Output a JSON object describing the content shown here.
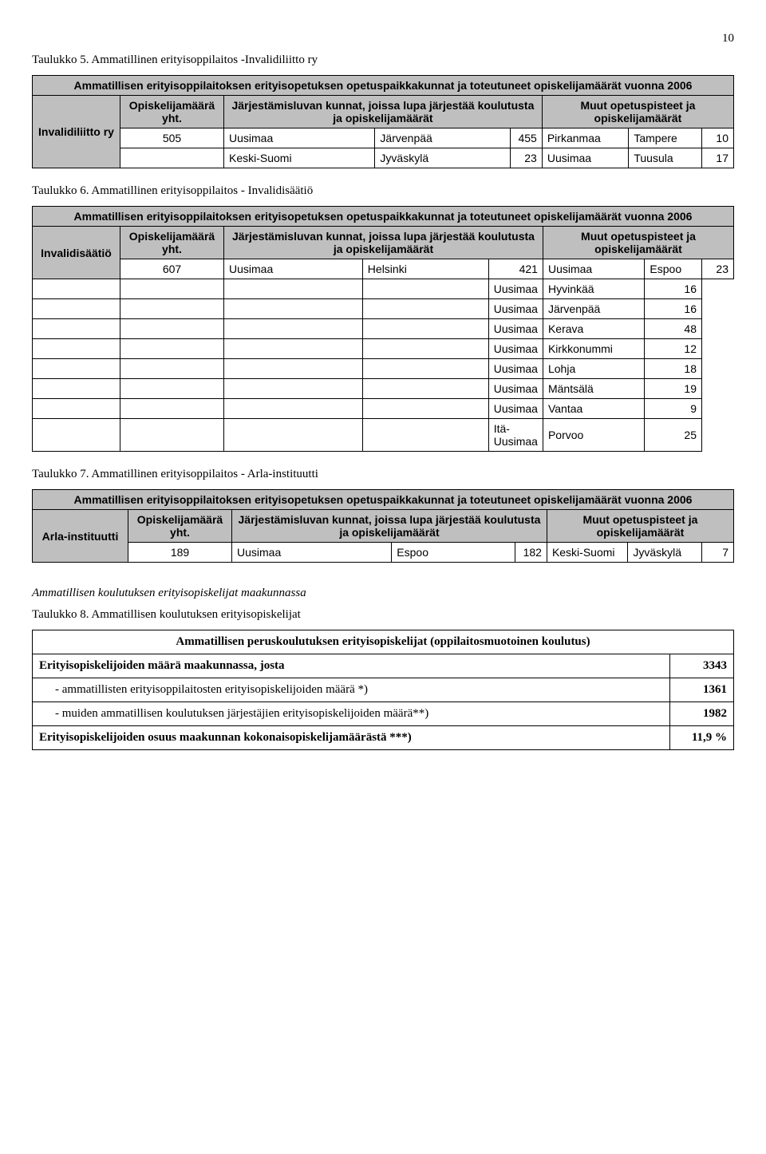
{
  "page_number": "10",
  "t5": {
    "caption": "Taulukko 5. Ammatillinen erityisoppilaitos -Invalidiliitto ry",
    "title": "Ammatillisen erityisoppilaitoksen erityisopetuksen opetuspaikkakunnat ja toteutuneet opiskelijamäärät vuonna 2006",
    "col_org": "Invalidiliitto ry",
    "col_count": "Opiskelijamäärä yht.",
    "col_jarj": "Järjestämisluvan kunnat, joissa lupa järjestää koulutusta ja opiskelijamäärät",
    "col_muut": "Muut opetuspisteet ja opiskelijamäärät",
    "r1": {
      "count": "505",
      "p1": "Uusimaa",
      "p2": "Järvenpää",
      "p3": "455",
      "p4": "Pirkanmaa",
      "p5": "Tampere",
      "p6": "10"
    },
    "r2": {
      "p1": "Keski-Suomi",
      "p2": "Jyväskylä",
      "p3": "23",
      "p4": "Uusimaa",
      "p5": "Tuusula",
      "p6": "17"
    }
  },
  "t6": {
    "caption": "Taulukko 6. Ammatillinen erityisoppilaitos - Invalidisäätiö",
    "title": "Ammatillisen erityisoppilaitoksen erityisopetuksen opetuspaikkakunnat ja toteutuneet opiskelijamäärät vuonna 2006",
    "col_org": "Invalidisäätiö",
    "col_count": "Opiskelijamäärä yht.",
    "col_jarj": "Järjestämisluvan kunnat, joissa lupa järjestää koulutusta ja opiskelijamäärät",
    "col_muut": "Muut opetuspisteet ja opiskelijamäärät",
    "r1": {
      "count": "607",
      "p1": "Uusimaa",
      "p2": "Helsinki",
      "p3": "421",
      "p4": "Uusimaa",
      "p5": "Espoo",
      "p6": "23"
    },
    "rows": [
      {
        "p4": "Uusimaa",
        "p5": "Hyvinkää",
        "p6": "16"
      },
      {
        "p4": "Uusimaa",
        "p5": "Järvenpää",
        "p6": "16"
      },
      {
        "p4": "Uusimaa",
        "p5": "Kerava",
        "p6": "48"
      },
      {
        "p4": "Uusimaa",
        "p5": "Kirkkonummi",
        "p6": "12"
      },
      {
        "p4": "Uusimaa",
        "p5": "Lohja",
        "p6": "18"
      },
      {
        "p4": "Uusimaa",
        "p5": "Mäntsälä",
        "p6": "19"
      },
      {
        "p4": "Uusimaa",
        "p5": "Vantaa",
        "p6": "9"
      },
      {
        "p4": "Itä-Uusimaa",
        "p5": "Porvoo",
        "p6": "25"
      }
    ]
  },
  "t7": {
    "caption": "Taulukko 7. Ammatillinen erityisoppilaitos - Arla-instituutti",
    "title": "Ammatillisen erityisoppilaitoksen erityisopetuksen opetuspaikkakunnat ja toteutuneet opiskelijamäärät vuonna 2006",
    "col_org": "Arla-instituutti",
    "col_count": "Opiskelijamäärä yht.",
    "col_jarj": "Järjestämisluvan kunnat, joissa lupa järjestää koulutusta ja opiskelijamäärät",
    "col_muut": "Muut opetuspisteet ja opiskelijamäärät",
    "r1": {
      "count": "189",
      "p1": "Uusimaa",
      "p2": "Espoo",
      "p3": "182",
      "p4": "Keski-Suomi",
      "p5": "Jyväskylä",
      "p6": "7"
    }
  },
  "section_heading": "Ammatillisen koulutuksen erityisopiskelijat maakunnassa",
  "t8": {
    "caption": "Taulukko 8. Ammatillisen koulutuksen erityisopiskelijat",
    "title": "Ammatillisen peruskoulutuksen erityisopiskelijat (oppilaitosmuotoinen koulutus)",
    "rows": [
      {
        "label": "Erityisopiskelijoiden määrä maakunnassa, josta",
        "val": "3343",
        "bold": true
      },
      {
        "label": "- ammatillisten erityisoppilaitosten erityisopiskelijoiden määrä  *)",
        "val": "1361",
        "indent": true
      },
      {
        "label": "- muiden ammatillisen koulutuksen järjestäjien erityisopiskelijoiden määrä**)",
        "val": "1982",
        "indent": true
      },
      {
        "label": "Erityisopiskelijoiden osuus maakunnan kokonaisopiskelijamäärästä ***)",
        "val": "11,9 %",
        "bold": true
      }
    ]
  }
}
